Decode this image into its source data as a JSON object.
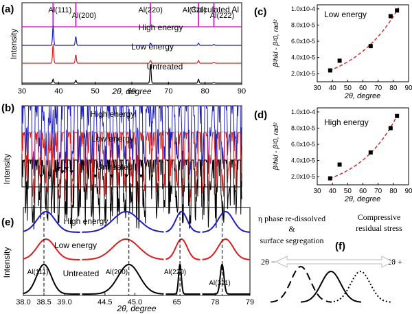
{
  "colors": {
    "high": "#1f1fbf",
    "low": "#d42020",
    "untreated": "#000000",
    "calc": "#cc33cc",
    "fit": "#d42020",
    "arrow": "#bbbbbb"
  },
  "chart_data": [
    {
      "id": "a",
      "type": "line",
      "panel_label": "(a)",
      "xlabel": "2θ, degree",
      "ylabel": "Intensity",
      "xlim": [
        30,
        90
      ],
      "xticks": [
        "30",
        "40",
        "50",
        "60",
        "70",
        "80",
        "90"
      ],
      "reference_lines": [
        {
          "label": "Al(111)",
          "x": 38.5
        },
        {
          "label": "Al(200)",
          "x": 44.7
        },
        {
          "label": "Al(220)",
          "x": 65.1
        },
        {
          "label": "Al(311)",
          "x": 78.2
        },
        {
          "label": "Al(222)",
          "x": 82.4
        }
      ],
      "series": [
        {
          "name": "Calculated Al",
          "key": "calc",
          "peaks": []
        },
        {
          "name": "High energy",
          "key": "high",
          "peaks": [
            [
              38.5,
              1.0
            ],
            [
              44.7,
              0.45
            ],
            [
              65.1,
              0.12
            ],
            [
              78.2,
              0.12
            ],
            [
              82.4,
              0.05
            ]
          ]
        },
        {
          "name": "Low energy",
          "key": "low",
          "peaks": [
            [
              38.5,
              1.0
            ],
            [
              44.7,
              0.45
            ],
            [
              65.1,
              0.15
            ],
            [
              78.2,
              0.15
            ],
            [
              82.4,
              0.05
            ]
          ]
        },
        {
          "name": "Untreated",
          "key": "untreated",
          "peaks": [
            [
              38.5,
              0.2
            ],
            [
              44.7,
              0.15
            ],
            [
              65.1,
              1.0
            ],
            [
              78.2,
              0.2
            ],
            [
              82.4,
              0.03
            ]
          ]
        }
      ]
    },
    {
      "id": "b",
      "type": "line",
      "panel_label": "(b)",
      "ylabel": "Intensity",
      "xlim": [
        30,
        90
      ],
      "series": [
        {
          "name": "High energy",
          "key": "high",
          "peaks": [
            [
              38.5,
              1.0
            ],
            [
              44.7,
              1.0
            ],
            [
              65.1,
              1.0
            ],
            [
              78.2,
              0.6
            ],
            [
              82.4,
              0.5
            ]
          ]
        },
        {
          "name": "Low energy",
          "key": "low",
          "peaks": [
            [
              38.5,
              1.0
            ],
            [
              40.8,
              0.15
            ],
            [
              44.7,
              1.0
            ],
            [
              65.1,
              1.0
            ],
            [
              78.2,
              0.25
            ],
            [
              82.4,
              0.8
            ]
          ]
        },
        {
          "name": "Untreated",
          "key": "untreated",
          "peaks": [
            [
              38.5,
              0.85
            ],
            [
              40.5,
              0.35
            ],
            [
              41.5,
              0.45
            ],
            [
              42.5,
              0.3
            ],
            [
              44.7,
              1.0
            ],
            [
              65.1,
              1.0
            ],
            [
              78.2,
              1.0
            ]
          ]
        }
      ],
      "marker_positions": [
        35.2,
        40.0,
        41.0,
        42.2,
        43.5,
        50.0,
        54.5,
        58.5,
        62.5
      ]
    },
    {
      "id": "c",
      "type": "scatter",
      "panel_label": "(c)",
      "annotation": "Low energy",
      "xlabel": "2θ, degree",
      "ylabel": "β²hkl - β²0, rad²",
      "xlim": [
        30,
        90
      ],
      "ylim": [
        1e-05,
        0.000105
      ],
      "xticks": [
        "30",
        "40",
        "50",
        "60",
        "70",
        "80",
        "90"
      ],
      "yticks": [
        "2.0x10-5",
        "4.0x10-5",
        "6.0x10-5",
        "8.0x10-5",
        "1.0x10-4"
      ],
      "points": [
        [
          38.5,
          2.4e-05
        ],
        [
          44.7,
          3.6e-05
        ],
        [
          65.1,
          5.4e-05
        ],
        [
          78.2,
          9.1e-05
        ],
        [
          82.4,
          9.8e-05
        ]
      ],
      "fit": "dashed red exponential"
    },
    {
      "id": "d",
      "type": "scatter",
      "panel_label": "(d)",
      "annotation": "High energy",
      "xlabel": "2θ, degree",
      "ylabel": "β²hkl - β²0, rad²",
      "xlim": [
        30,
        90
      ],
      "ylim": [
        1e-05,
        0.000105
      ],
      "xticks": [
        "30",
        "40",
        "50",
        "60",
        "70",
        "80",
        "90"
      ],
      "yticks": [
        "2.0x10-5",
        "4.0x10-5",
        "6.0x10-5",
        "8.0x10-5",
        "1.0x10-4"
      ],
      "points": [
        [
          38.5,
          1.8e-05
        ],
        [
          44.7,
          3.5e-05
        ],
        [
          65.1,
          5e-05
        ],
        [
          78.2,
          8e-05
        ],
        [
          82.4,
          9.5e-05
        ]
      ],
      "fit": "dashed red exponential"
    },
    {
      "id": "e",
      "type": "line",
      "panel_label": "(e)",
      "ylabel": "Intensity",
      "xlabel": "2θ, degree",
      "xticks": [
        "38.0",
        "38.5",
        "39.0",
        "44.5",
        "45.0",
        "65",
        "78",
        "79"
      ],
      "segments": [
        {
          "xlim": [
            38.0,
            39.4
          ],
          "peak_label": "Al(111)",
          "centers": {
            "high": 38.55,
            "low": 38.55,
            "untreated": 38.5
          }
        },
        {
          "xlim": [
            44.1,
            45.5
          ],
          "peak_label": "Al(200)",
          "centers": {
            "high": 44.85,
            "low": 44.85,
            "untreated": 44.9
          }
        },
        {
          "xlim": [
            64.6,
            65.8
          ],
          "peak_label": "Al(220)",
          "centers": {
            "high": 65.15,
            "low": 65.15,
            "untreated": 65.1
          }
        },
        {
          "xlim": [
            77.6,
            79.0
          ],
          "peak_label": "Al(311)",
          "centers": {
            "high": 78.3,
            "low": 78.3,
            "untreated": 78.2
          }
        }
      ],
      "series": [
        {
          "name": "High energy",
          "key": "high"
        },
        {
          "name": "Low energy",
          "key": "low"
        },
        {
          "name": "Untreated",
          "key": "untreated"
        }
      ]
    }
  ],
  "panel_f": {
    "label": "(f)",
    "left_text_1": "η phase re-dissolved",
    "left_text_2": "&",
    "left_text_3": "surface segregation",
    "right_text_1": "Compressive",
    "right_text_2": "residual stress",
    "minus_label": "2θ −",
    "plus_label": "2θ +"
  }
}
